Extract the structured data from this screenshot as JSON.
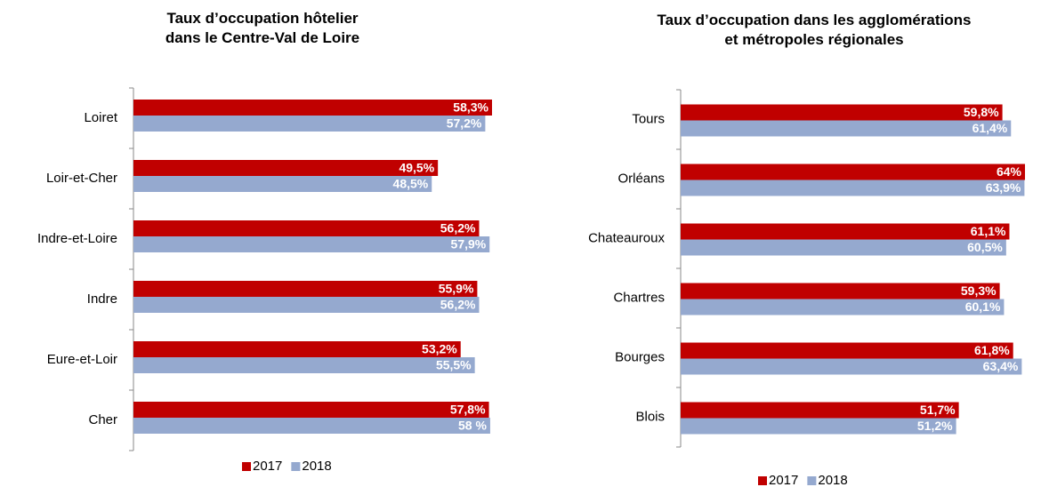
{
  "chart_data": [
    {
      "type": "bar",
      "orientation": "horizontal",
      "title": "Taux d’occupation hôtelier\ndans le Centre-Val de Loire",
      "categories": [
        "Loiret",
        "Loir-et-Cher",
        "Indre-et-Loire",
        "Indre",
        "Eure-et-Loir",
        "Cher"
      ],
      "series": [
        {
          "name": "2017",
          "color": "#c00000",
          "values": [
            58.3,
            49.5,
            56.2,
            55.9,
            53.2,
            57.8
          ],
          "value_labels": [
            "58,3%",
            "49,5%",
            "56,2%",
            "55,9%",
            "53,2%",
            "57,8%"
          ]
        },
        {
          "name": "2018",
          "color": "#95a9cf",
          "values": [
            57.2,
            48.5,
            57.9,
            56.2,
            55.5,
            58
          ],
          "value_labels": [
            "57,2%",
            "48,5%",
            "57,9%",
            "56,2%",
            "55,5%",
            "58 %"
          ]
        }
      ]
    },
    {
      "type": "bar",
      "orientation": "horizontal",
      "title": "Taux d’occupation dans les agglomérations\net métropoles régionales",
      "categories": [
        "Tours",
        "Orléans",
        "Chateauroux",
        "Chartres",
        "Bourges",
        "Blois"
      ],
      "series": [
        {
          "name": "2017",
          "color": "#c00000",
          "values": [
            59.8,
            64,
            61.1,
            59.3,
            61.8,
            51.7
          ],
          "value_labels": [
            "59,8%",
            "64%",
            "61,1%",
            "59,3%",
            "61,8%",
            "51,7%"
          ]
        },
        {
          "name": "2018",
          "color": "#95a9cf",
          "values": [
            61.4,
            63.9,
            60.5,
            60.1,
            63.4,
            51.2
          ],
          "value_labels": [
            "61,4%",
            "63,9%",
            "60,5%",
            "60,1%",
            "63,4%",
            "51,2%"
          ]
        }
      ]
    }
  ]
}
